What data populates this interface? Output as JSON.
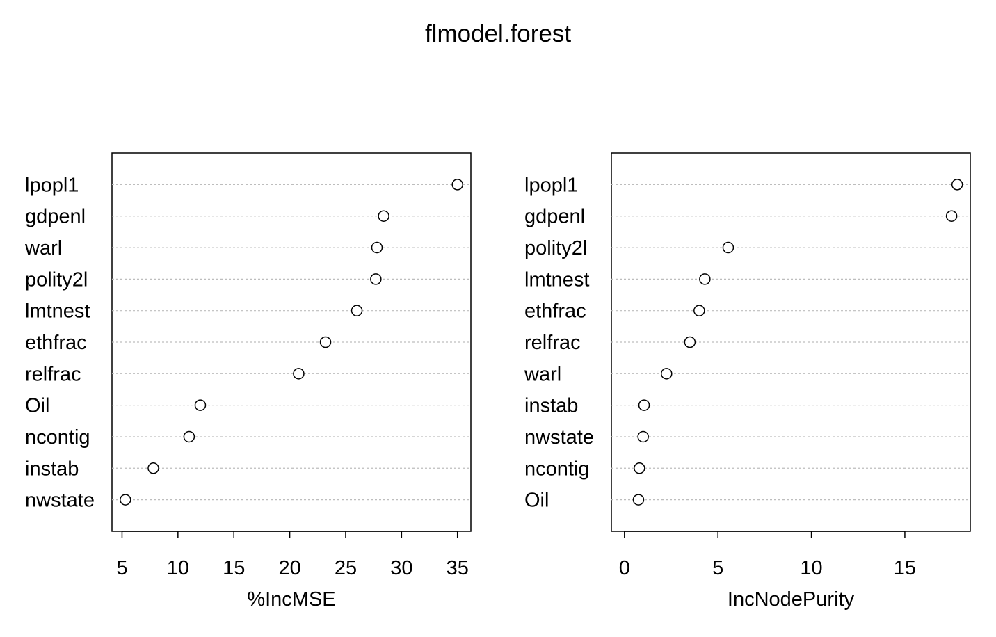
{
  "title": "flmodel.forest",
  "chart_data": [
    {
      "type": "scatter",
      "xlabel": "%IncMSE",
      "ylabel": "",
      "categories": [
        "lpopl1",
        "gdpenl",
        "warl",
        "polity2l",
        "lmtnest",
        "ethfrac",
        "relfrac",
        "Oil",
        "ncontig",
        "instab",
        "nwstate"
      ],
      "values": [
        35.0,
        28.4,
        27.8,
        27.7,
        26.0,
        23.2,
        20.8,
        12.0,
        11.0,
        7.8,
        5.3
      ],
      "xticks": [
        5,
        10,
        15,
        20,
        25,
        30,
        35
      ],
      "xlim": [
        4.1,
        36.2
      ],
      "grid": "dotted horizontal"
    },
    {
      "type": "scatter",
      "xlabel": "IncNodePurity",
      "ylabel": "",
      "categories": [
        "lpopl1",
        "gdpenl",
        "polity2l",
        "lmtnest",
        "ethfrac",
        "relfrac",
        "warl",
        "instab",
        "nwstate",
        "ncontig",
        "Oil"
      ],
      "values": [
        17.8,
        17.5,
        5.55,
        4.3,
        4.0,
        3.5,
        2.25,
        1.05,
        1.0,
        0.8,
        0.75
      ],
      "xticks": [
        0,
        5,
        10,
        15
      ],
      "xlim": [
        -0.7,
        18.5
      ],
      "grid": "dotted horizontal"
    }
  ]
}
